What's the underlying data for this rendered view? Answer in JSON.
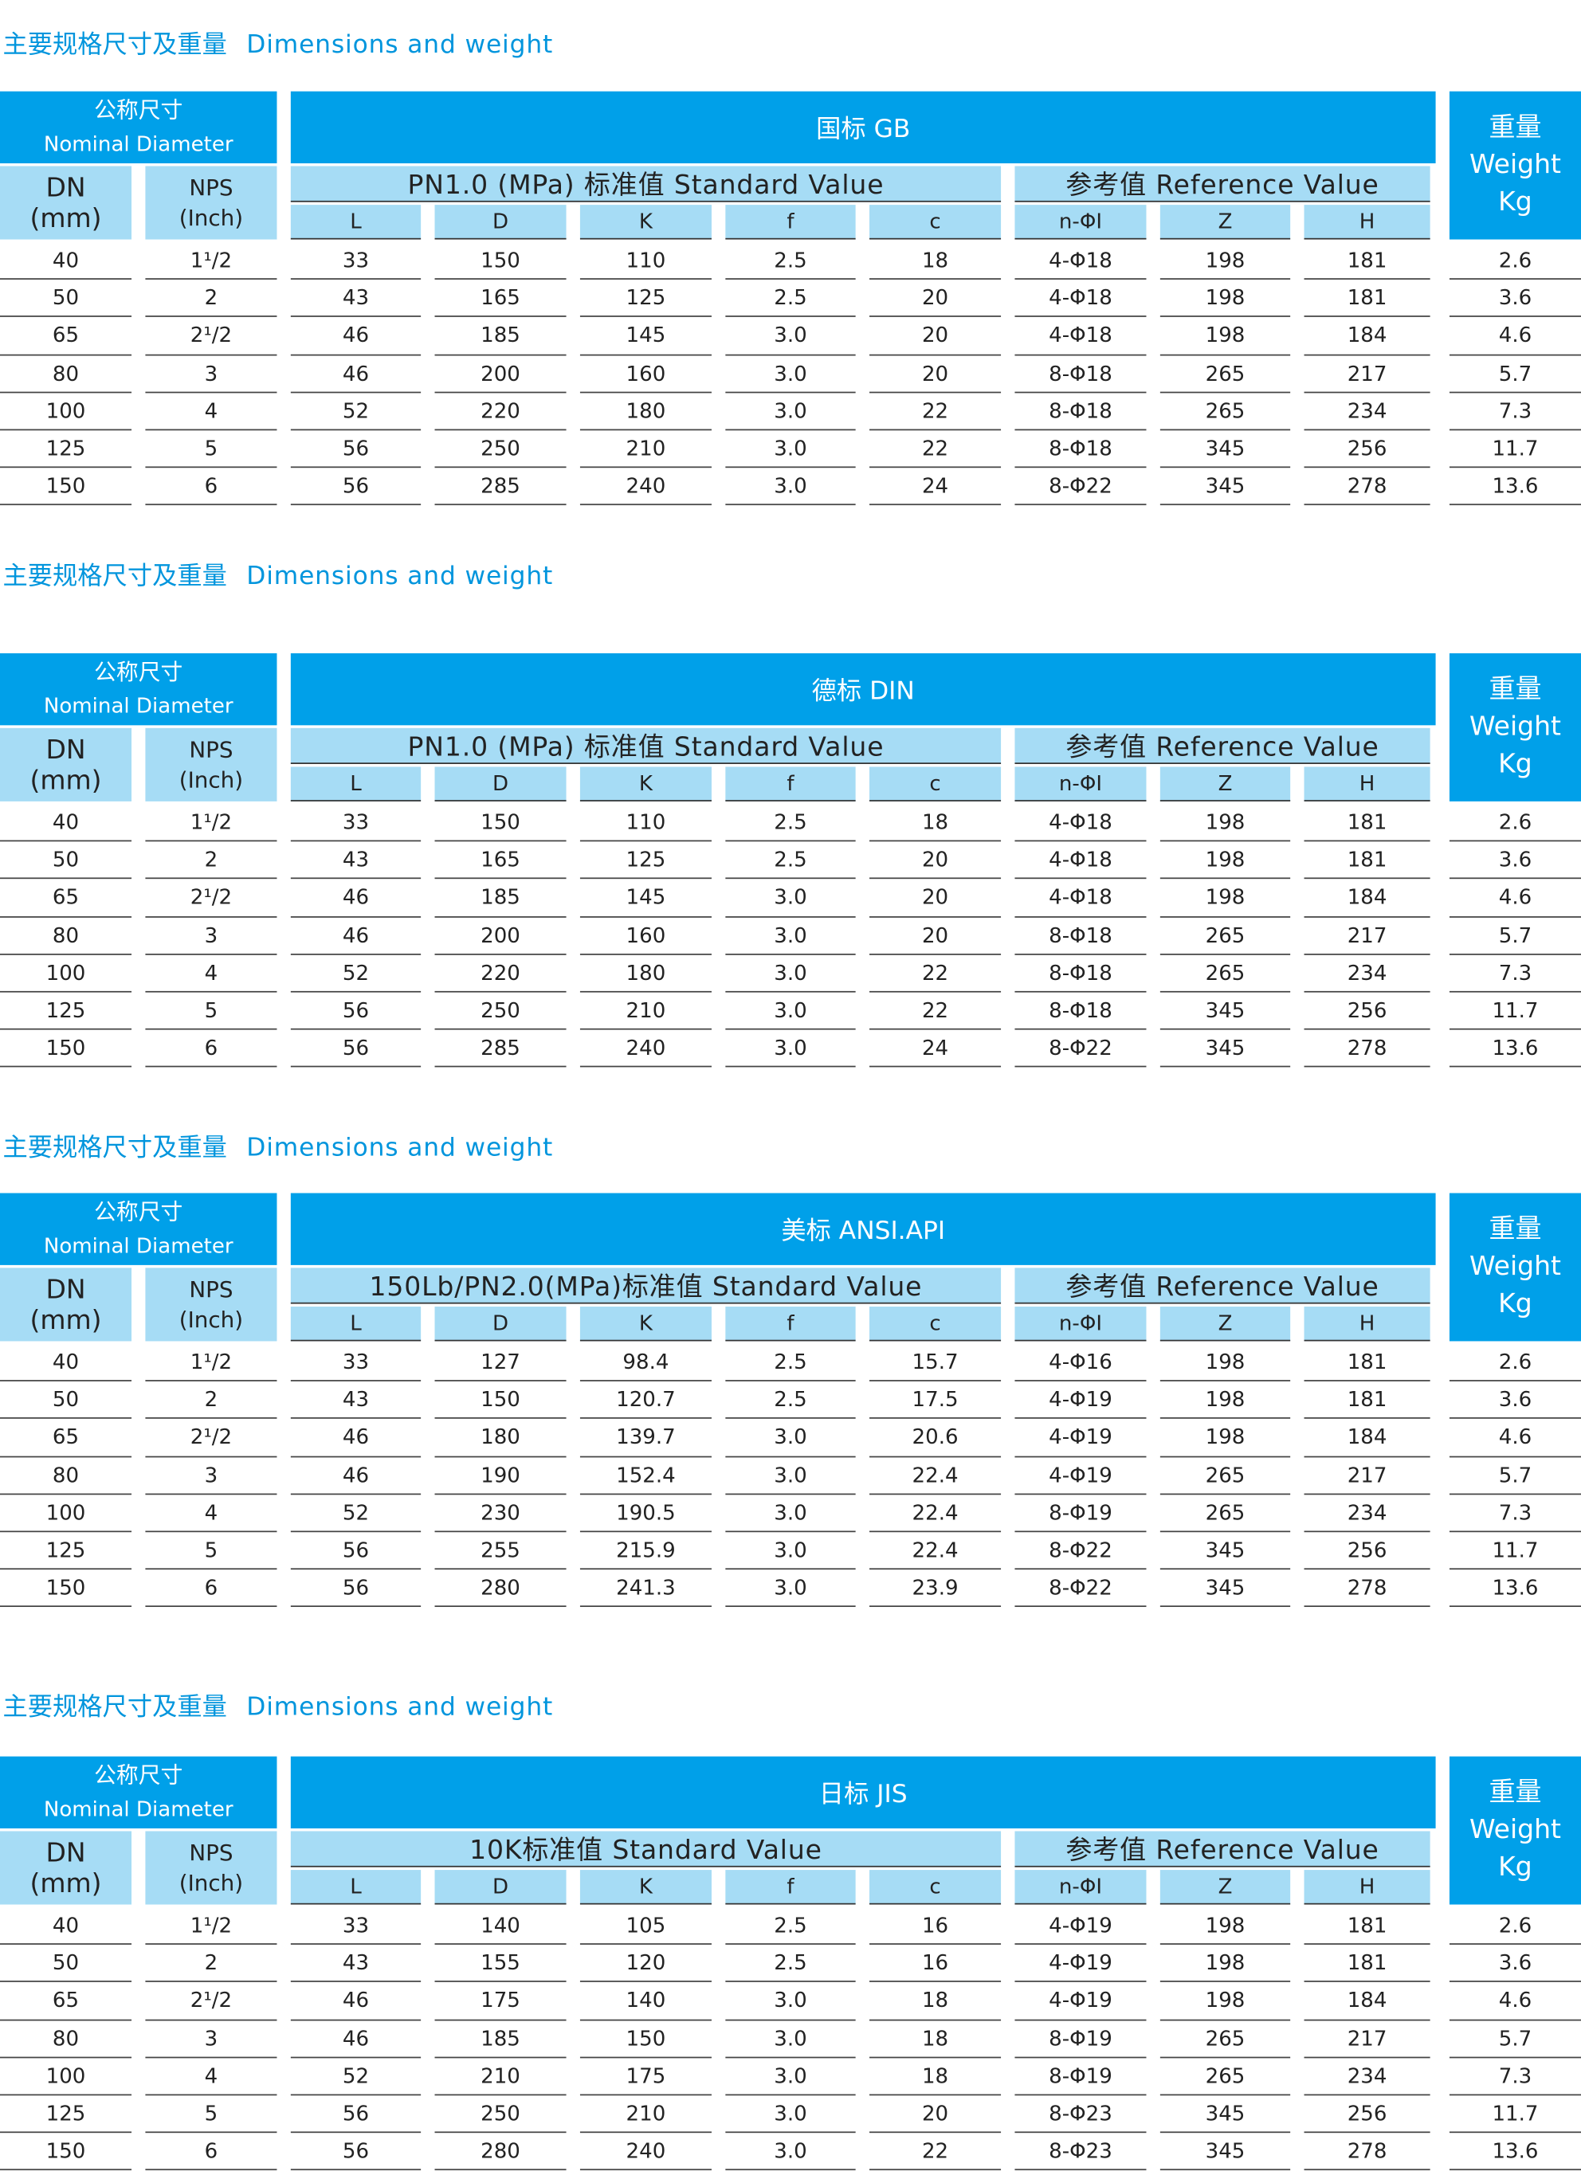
{
  "sections": [
    {
      "heading_cn": "主要规格尺寸及重量",
      "heading_en": "Dimensions and weight",
      "nominal_cn": "公称尺寸",
      "nominal_en": "Nominal Diameter",
      "standard": "国标 GB",
      "standard_value": "PN1.0 (MPa) 标准值  Standard Value",
      "reference": "参考值  Reference Value",
      "weight": [
        "重量",
        "Weight",
        "Kg"
      ],
      "dn": [
        "DN",
        "(mm)"
      ],
      "nps": [
        "NPS",
        "(Inch)"
      ],
      "columns": [
        "L",
        "D",
        "K",
        "f",
        "c",
        "n-ΦI",
        "Z",
        "H"
      ],
      "rows": [
        [
          "40",
          "1¹/2",
          "33",
          "150",
          "110",
          "2.5",
          "18",
          "4-Φ18",
          "198",
          "181",
          "2.6"
        ],
        [
          "50",
          "2",
          "43",
          "165",
          "125",
          "2.5",
          "20",
          "4-Φ18",
          "198",
          "181",
          "3.6"
        ],
        [
          "65",
          "2¹/2",
          "46",
          "185",
          "145",
          "3.0",
          "20",
          "4-Φ18",
          "198",
          "184",
          "4.6"
        ],
        [
          "80",
          "3",
          "46",
          "200",
          "160",
          "3.0",
          "20",
          "8-Φ18",
          "265",
          "217",
          "5.7"
        ],
        [
          "100",
          "4",
          "52",
          "220",
          "180",
          "3.0",
          "22",
          "8-Φ18",
          "265",
          "234",
          "7.3"
        ],
        [
          "125",
          "5",
          "56",
          "250",
          "210",
          "3.0",
          "22",
          "8-Φ18",
          "345",
          "256",
          "11.7"
        ],
        [
          "150",
          "6",
          "56",
          "285",
          "240",
          "3.0",
          "24",
          "8-Φ22",
          "345",
          "278",
          "13.6"
        ]
      ]
    },
    {
      "heading_cn": "主要规格尺寸及重量",
      "heading_en": "Dimensions and weight",
      "nominal_cn": "公称尺寸",
      "nominal_en": "Nominal Diameter",
      "standard": "德标 DIN",
      "standard_value": "PN1.0 (MPa) 标准值  Standard Value",
      "reference": "参考值  Reference Value",
      "weight": [
        "重量",
        "Weight",
        "Kg"
      ],
      "dn": [
        "DN",
        "(mm)"
      ],
      "nps": [
        "NPS",
        "(Inch)"
      ],
      "columns": [
        "L",
        "D",
        "K",
        "f",
        "c",
        "n-ΦI",
        "Z",
        "H"
      ],
      "rows": [
        [
          "40",
          "1¹/2",
          "33",
          "150",
          "110",
          "2.5",
          "18",
          "4-Φ18",
          "198",
          "181",
          "2.6"
        ],
        [
          "50",
          "2",
          "43",
          "165",
          "125",
          "2.5",
          "20",
          "4-Φ18",
          "198",
          "181",
          "3.6"
        ],
        [
          "65",
          "2¹/2",
          "46",
          "185",
          "145",
          "3.0",
          "20",
          "4-Φ18",
          "198",
          "184",
          "4.6"
        ],
        [
          "80",
          "3",
          "46",
          "200",
          "160",
          "3.0",
          "20",
          "8-Φ18",
          "265",
          "217",
          "5.7"
        ],
        [
          "100",
          "4",
          "52",
          "220",
          "180",
          "3.0",
          "22",
          "8-Φ18",
          "265",
          "234",
          "7.3"
        ],
        [
          "125",
          "5",
          "56",
          "250",
          "210",
          "3.0",
          "22",
          "8-Φ18",
          "345",
          "256",
          "11.7"
        ],
        [
          "150",
          "6",
          "56",
          "285",
          "240",
          "3.0",
          "24",
          "8-Φ22",
          "345",
          "278",
          "13.6"
        ]
      ]
    },
    {
      "heading_cn": "主要规格尺寸及重量",
      "heading_en": "Dimensions and weight",
      "nominal_cn": "公称尺寸",
      "nominal_en": "Nominal Diameter",
      "standard": "美标 ANSI.API",
      "standard_value": "150Lb/PN2.0(MPa)标准值  Standard Value",
      "reference": "参考值  Reference Value",
      "weight": [
        "重量",
        "Weight",
        "Kg"
      ],
      "dn": [
        "DN",
        "(mm)"
      ],
      "nps": [
        "NPS",
        "(Inch)"
      ],
      "columns": [
        "L",
        "D",
        "K",
        "f",
        "c",
        "n-ΦI",
        "Z",
        "H"
      ],
      "rows": [
        [
          "40",
          "1¹/2",
          "33",
          "127",
          "98.4",
          "2.5",
          "15.7",
          "4-Φ16",
          "198",
          "181",
          "2.6"
        ],
        [
          "50",
          "2",
          "43",
          "150",
          "120.7",
          "2.5",
          "17.5",
          "4-Φ19",
          "198",
          "181",
          "3.6"
        ],
        [
          "65",
          "2¹/2",
          "46",
          "180",
          "139.7",
          "3.0",
          "20.6",
          "4-Φ19",
          "198",
          "184",
          "4.6"
        ],
        [
          "80",
          "3",
          "46",
          "190",
          "152.4",
          "3.0",
          "22.4",
          "4-Φ19",
          "265",
          "217",
          "5.7"
        ],
        [
          "100",
          "4",
          "52",
          "230",
          "190.5",
          "3.0",
          "22.4",
          "8-Φ19",
          "265",
          "234",
          "7.3"
        ],
        [
          "125",
          "5",
          "56",
          "255",
          "215.9",
          "3.0",
          "22.4",
          "8-Φ22",
          "345",
          "256",
          "11.7"
        ],
        [
          "150",
          "6",
          "56",
          "280",
          "241.3",
          "3.0",
          "23.9",
          "8-Φ22",
          "345",
          "278",
          "13.6"
        ]
      ]
    },
    {
      "heading_cn": "主要规格尺寸及重量",
      "heading_en": "Dimensions and weight",
      "nominal_cn": "公称尺寸",
      "nominal_en": "Nominal Diameter",
      "standard": "日标 JIS",
      "standard_value": "10K标准值  Standard Value",
      "reference": "参考值  Reference Value",
      "weight": [
        "重量",
        "Weight",
        "Kg"
      ],
      "dn": [
        "DN",
        "(mm)"
      ],
      "nps": [
        "NPS",
        "(Inch)"
      ],
      "columns": [
        "L",
        "D",
        "K",
        "f",
        "c",
        "n-ΦI",
        "Z",
        "H"
      ],
      "rows": [
        [
          "40",
          "1¹/2",
          "33",
          "140",
          "105",
          "2.5",
          "16",
          "4-Φ19",
          "198",
          "181",
          "2.6"
        ],
        [
          "50",
          "2",
          "43",
          "155",
          "120",
          "2.5",
          "16",
          "4-Φ19",
          "198",
          "181",
          "3.6"
        ],
        [
          "65",
          "2¹/2",
          "46",
          "175",
          "140",
          "3.0",
          "18",
          "4-Φ19",
          "198",
          "184",
          "4.6"
        ],
        [
          "80",
          "3",
          "46",
          "185",
          "150",
          "3.0",
          "18",
          "8-Φ19",
          "265",
          "217",
          "5.7"
        ],
        [
          "100",
          "4",
          "52",
          "210",
          "175",
          "3.0",
          "18",
          "8-Φ19",
          "265",
          "234",
          "7.3"
        ],
        [
          "125",
          "5",
          "56",
          "250",
          "210",
          "3.0",
          "20",
          "8-Φ23",
          "345",
          "256",
          "11.7"
        ],
        [
          "150",
          "6",
          "56",
          "280",
          "240",
          "3.0",
          "22",
          "8-Φ23",
          "345",
          "278",
          "13.6"
        ]
      ]
    }
  ]
}
